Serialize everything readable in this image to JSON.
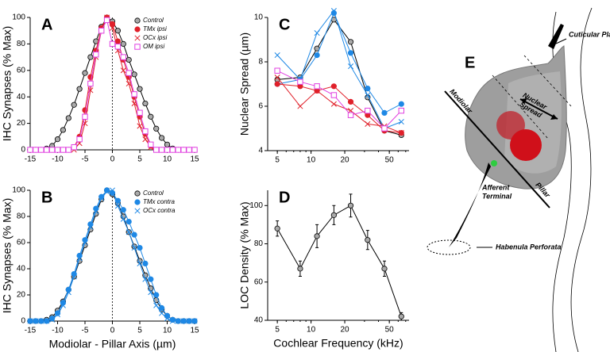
{
  "chart_data": [
    {
      "type": "line",
      "label": "A",
      "ylabel": "IHC Synapses (% Max)",
      "x": [
        -15,
        -14,
        -13,
        -12,
        -11,
        -10,
        -9,
        -8,
        -7,
        -6,
        -5,
        -4,
        -3,
        -2,
        -1,
        0,
        1,
        2,
        3,
        4,
        5,
        6,
        7,
        8,
        9,
        10,
        11,
        12,
        13,
        14,
        15
      ],
      "xlim": [
        -15,
        15
      ],
      "xticks": [
        -15,
        -10,
        -5,
        0,
        5,
        10,
        15
      ],
      "ylim": [
        0,
        100
      ],
      "yticks": [
        0,
        20,
        40,
        60,
        80,
        100
      ],
      "legend": "upper right",
      "series": [
        {
          "name": "Control",
          "color": "#000000",
          "fill": "#aaaaaa",
          "marker": "circle",
          "values": [
            0,
            0,
            0,
            1,
            3,
            8,
            15,
            24,
            34,
            46,
            58,
            70,
            82,
            93,
            100,
            97,
            90,
            80,
            68,
            57,
            46,
            35,
            25,
            16,
            9,
            4,
            1,
            0,
            0,
            0,
            0
          ]
        },
        {
          "name": "TMx ipsi",
          "color": "#e0202a",
          "fill": "#e0202a",
          "marker": "circle",
          "values": [
            0,
            0,
            0,
            0,
            0,
            0,
            0,
            0,
            2,
            10,
            30,
            55,
            75,
            92,
            100,
            95,
            82,
            68,
            55,
            40,
            25,
            12,
            3,
            0,
            0,
            0,
            0,
            0,
            0,
            0,
            0
          ]
        },
        {
          "name": "OCx  ipsi",
          "color": "#e0202a",
          "fill": "none",
          "marker": "x",
          "values": [
            0,
            0,
            0,
            0,
            0,
            0,
            0,
            0,
            0,
            5,
            20,
            45,
            70,
            90,
            100,
            92,
            75,
            60,
            50,
            35,
            18,
            8,
            2,
            0,
            0,
            0,
            0,
            0,
            0,
            0,
            0
          ]
        },
        {
          "name": "OM ipsi",
          "color": "#e040e0",
          "fill": "#ffffff",
          "marker": "square",
          "values": [
            0,
            0,
            0,
            0,
            0,
            0,
            0,
            0,
            2,
            8,
            25,
            50,
            72,
            90,
            98,
            80,
            78,
            70,
            58,
            42,
            28,
            14,
            4,
            0,
            0,
            0,
            0,
            0,
            0,
            0,
            0
          ]
        }
      ]
    },
    {
      "type": "line",
      "label": "B",
      "ylabel": "IHC Synapses (% Max)",
      "xlabel": "Modiolar - Pillar Axis (µm)",
      "x": [
        -15,
        -14,
        -13,
        -12,
        -11,
        -10,
        -9,
        -8,
        -7,
        -6,
        -5,
        -4,
        -3,
        -2,
        -1,
        0,
        1,
        2,
        3,
        4,
        5,
        6,
        7,
        8,
        9,
        10,
        11,
        12,
        13,
        14,
        15
      ],
      "xlim": [
        -15,
        15
      ],
      "xticks": [
        -15,
        -10,
        -5,
        0,
        5,
        10,
        15
      ],
      "ylim": [
        0,
        100
      ],
      "yticks": [
        0,
        20,
        40,
        60,
        80,
        100
      ],
      "legend": "upper right",
      "series": [
        {
          "name": "Control",
          "color": "#000000",
          "fill": "#aaaaaa",
          "marker": "circle",
          "values": [
            0,
            0,
            0,
            1,
            3,
            8,
            15,
            24,
            34,
            46,
            58,
            70,
            82,
            93,
            100,
            97,
            90,
            80,
            68,
            57,
            46,
            35,
            25,
            16,
            9,
            4,
            1,
            0,
            0,
            0,
            0
          ]
        },
        {
          "name": "TMx contra",
          "color": "#1e88e5",
          "fill": "#1e88e5",
          "marker": "circle",
          "values": [
            0,
            0,
            0,
            0,
            2,
            6,
            14,
            24,
            36,
            50,
            62,
            74,
            86,
            95,
            100,
            98,
            92,
            85,
            76,
            66,
            56,
            44,
            32,
            20,
            10,
            4,
            1,
            0,
            0,
            0,
            0
          ]
        },
        {
          "name": "OCx contra",
          "color": "#1e88e5",
          "fill": "none",
          "marker": "x",
          "values": [
            0,
            0,
            0,
            0,
            1,
            5,
            12,
            22,
            34,
            48,
            60,
            72,
            84,
            94,
            99,
            100,
            88,
            78,
            68,
            56,
            44,
            32,
            22,
            12,
            6,
            2,
            0,
            0,
            0,
            0,
            0
          ]
        }
      ]
    },
    {
      "type": "line",
      "label": "C",
      "ylabel": "Nuclear Spread (µm)",
      "xscale": "log",
      "x": [
        5,
        8,
        11.3,
        16,
        22.6,
        32,
        45.2,
        64
      ],
      "xlim": [
        4.1,
        75
      ],
      "xticks": [
        5,
        10,
        20,
        50
      ],
      "ylim": [
        4,
        10
      ],
      "yticks": [
        4,
        6,
        8,
        10
      ],
      "series": [
        {
          "name": "Control",
          "color": "#000000",
          "fill": "#aaaaaa",
          "marker": "circle",
          "values": [
            7.2,
            7.3,
            8.6,
            9.9,
            8.9,
            6.4,
            4.9,
            4.7
          ]
        },
        {
          "name": "TMx contra",
          "color": "#1e88e5",
          "fill": "#1e88e5",
          "marker": "circle",
          "values": [
            7.0,
            7.2,
            8.3,
            10.2,
            8.4,
            6.8,
            5.7,
            6.1
          ]
        },
        {
          "name": "OCx contra",
          "color": "#1e88e5",
          "fill": "none",
          "marker": "x",
          "values": [
            8.3,
            7.2,
            9.3,
            10.3,
            7.8,
            6.5,
            5.0,
            5.3
          ]
        },
        {
          "name": "TMx ipsi",
          "color": "#e0202a",
          "fill": "#e0202a",
          "marker": "circle",
          "values": [
            7.0,
            6.9,
            6.7,
            6.9,
            6.2,
            5.6,
            4.9,
            4.8
          ]
        },
        {
          "name": "OCx  ipsi",
          "color": "#e0202a",
          "fill": "none",
          "marker": "x",
          "values": [
            7.3,
            6.0,
            6.7,
            6.1,
            5.8,
            5.2,
            5.1,
            4.8
          ]
        },
        {
          "name": "OM ipsi",
          "color": "#e040e0",
          "fill": "#ffffff",
          "marker": "square",
          "values": [
            7.6,
            7.1,
            6.9,
            6.5,
            5.6,
            5.8,
            5.0,
            5.8
          ]
        }
      ]
    },
    {
      "type": "line",
      "label": "D",
      "ylabel": "LOC Density (% Max)",
      "xlabel": "Cochlear Frequency (kHz)",
      "xscale": "log",
      "x": [
        5,
        8,
        11.3,
        16,
        22.6,
        32,
        45.2,
        64
      ],
      "xlim": [
        4.1,
        75
      ],
      "xticks": [
        5,
        10,
        20,
        50
      ],
      "ylim": [
        40,
        108
      ],
      "yticks": [
        40,
        60,
        80,
        100
      ],
      "series": [
        {
          "name": "Control",
          "color": "#000000",
          "fill": "#aaaaaa",
          "marker": "circle",
          "values": [
            88,
            67,
            84,
            95,
            100,
            82,
            67,
            42
          ],
          "errors": [
            4,
            4,
            6,
            5,
            6,
            5,
            4,
            2
          ]
        }
      ]
    }
  ],
  "diagram": {
    "label": "E",
    "cuticular_plate": "Cuticular Plate",
    "modiolar": "Modiolar",
    "nuclear_spread": [
      "Nuclear",
      "Spread"
    ],
    "afferent_terminal": [
      "Afferent",
      "Terminal"
    ],
    "pillar": "Pillar",
    "habenula_perforata": "Habenula Perforata"
  }
}
